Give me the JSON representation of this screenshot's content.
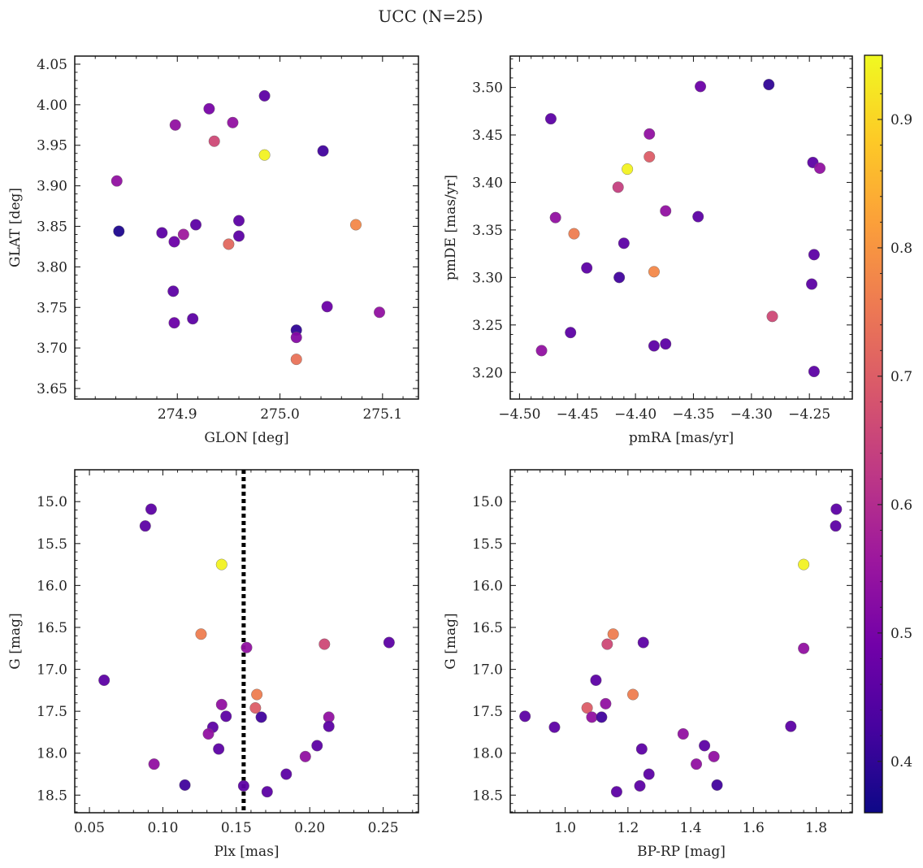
{
  "figure": {
    "title": "UCC (N=25)",
    "colormap": [
      "#0d0887",
      "#46039f",
      "#7201a8",
      "#9c179e",
      "#bd3786",
      "#d8576b",
      "#ed7953",
      "#fb9f3a",
      "#fdca26",
      "#f0f921"
    ],
    "colorbar": {
      "range": [
        0.36,
        0.95
      ],
      "ticks": [
        0.4,
        0.5,
        0.6,
        0.7,
        0.8,
        0.9
      ]
    }
  },
  "chart_data": [
    {
      "id": "p1",
      "type": "scatter",
      "xlabel": "GLON [deg]",
      "ylabel": "GLAT [deg]",
      "xlim": [
        274.8,
        275.135
      ],
      "ylim": [
        3.637,
        4.06
      ],
      "y_inverted": false,
      "xticks": [
        274.9,
        275.0,
        275.1
      ],
      "xtick_labels": [
        "274.9",
        "275.0",
        "275.1"
      ],
      "yticks": [
        3.65,
        3.7,
        3.75,
        3.8,
        3.85,
        3.9,
        3.95,
        4.0,
        4.05
      ],
      "ytick_labels": [
        "3.65",
        "3.70",
        "3.75",
        "3.80",
        "3.85",
        "3.90",
        "3.95",
        "4.00",
        "4.05"
      ],
      "points": [
        {
          "x": 274.843,
          "y": 3.844,
          "c": 0.38
        },
        {
          "x": 274.841,
          "y": 3.906,
          "c": 0.54
        },
        {
          "x": 274.885,
          "y": 3.842,
          "c": 0.46
        },
        {
          "x": 274.897,
          "y": 3.831,
          "c": 0.48
        },
        {
          "x": 274.906,
          "y": 3.84,
          "c": 0.56
        },
        {
          "x": 274.898,
          "y": 3.975,
          "c": 0.54
        },
        {
          "x": 274.931,
          "y": 3.995,
          "c": 0.5
        },
        {
          "x": 274.936,
          "y": 3.955,
          "c": 0.66
        },
        {
          "x": 274.954,
          "y": 3.978,
          "c": 0.54
        },
        {
          "x": 274.918,
          "y": 3.852,
          "c": 0.46
        },
        {
          "x": 274.96,
          "y": 3.857,
          "c": 0.46
        },
        {
          "x": 274.96,
          "y": 3.838,
          "c": 0.46
        },
        {
          "x": 274.95,
          "y": 3.828,
          "c": 0.72
        },
        {
          "x": 274.896,
          "y": 3.77,
          "c": 0.46
        },
        {
          "x": 274.897,
          "y": 3.731,
          "c": 0.48
        },
        {
          "x": 274.915,
          "y": 3.736,
          "c": 0.46
        },
        {
          "x": 274.985,
          "y": 4.011,
          "c": 0.46
        },
        {
          "x": 274.985,
          "y": 3.938,
          "c": 0.94
        },
        {
          "x": 275.042,
          "y": 3.943,
          "c": 0.42
        },
        {
          "x": 275.074,
          "y": 3.852,
          "c": 0.78
        },
        {
          "x": 275.046,
          "y": 3.751,
          "c": 0.48
        },
        {
          "x": 275.097,
          "y": 3.744,
          "c": 0.54
        },
        {
          "x": 275.016,
          "y": 3.722,
          "c": 0.4
        },
        {
          "x": 275.016,
          "y": 3.713,
          "c": 0.52
        },
        {
          "x": 275.016,
          "y": 3.686,
          "c": 0.74
        }
      ]
    },
    {
      "id": "p2",
      "type": "scatter",
      "xlabel": "pmRA [mas/yr]",
      "ylabel": "pmDE [mas/yr]",
      "xlim": [
        -4.508,
        -4.213
      ],
      "ylim": [
        3.172,
        3.533
      ],
      "y_inverted": false,
      "xticks": [
        -4.5,
        -4.45,
        -4.4,
        -4.35,
        -4.3,
        -4.25
      ],
      "xtick_labels": [
        "−4.50",
        "−4.45",
        "−4.40",
        "−4.35",
        "−4.30",
        "−4.25"
      ],
      "yticks": [
        3.2,
        3.25,
        3.3,
        3.35,
        3.4,
        3.45,
        3.5
      ],
      "ytick_labels": [
        "3.20",
        "3.25",
        "3.30",
        "3.35",
        "3.40",
        "3.45",
        "3.50"
      ],
      "points": [
        {
          "x": -4.473,
          "y": 3.467,
          "c": 0.46
        },
        {
          "x": -4.469,
          "y": 3.363,
          "c": 0.54
        },
        {
          "x": -4.453,
          "y": 3.346,
          "c": 0.76
        },
        {
          "x": -4.442,
          "y": 3.31,
          "c": 0.46
        },
        {
          "x": -4.414,
          "y": 3.3,
          "c": 0.42
        },
        {
          "x": -4.415,
          "y": 3.395,
          "c": 0.64
        },
        {
          "x": -4.407,
          "y": 3.414,
          "c": 0.94
        },
        {
          "x": -4.41,
          "y": 3.336,
          "c": 0.46
        },
        {
          "x": -4.388,
          "y": 3.451,
          "c": 0.54
        },
        {
          "x": -4.388,
          "y": 3.427,
          "c": 0.7
        },
        {
          "x": -4.384,
          "y": 3.306,
          "c": 0.78
        },
        {
          "x": -4.374,
          "y": 3.37,
          "c": 0.54
        },
        {
          "x": -4.346,
          "y": 3.364,
          "c": 0.46
        },
        {
          "x": -4.344,
          "y": 3.501,
          "c": 0.48
        },
        {
          "x": -4.285,
          "y": 3.503,
          "c": 0.4
        },
        {
          "x": -4.282,
          "y": 3.259,
          "c": 0.66
        },
        {
          "x": -4.456,
          "y": 3.242,
          "c": 0.46
        },
        {
          "x": -4.481,
          "y": 3.223,
          "c": 0.54
        },
        {
          "x": -4.384,
          "y": 3.228,
          "c": 0.46
        },
        {
          "x": -4.374,
          "y": 3.23,
          "c": 0.46
        },
        {
          "x": -4.247,
          "y": 3.421,
          "c": 0.46
        },
        {
          "x": -4.241,
          "y": 3.415,
          "c": 0.54
        },
        {
          "x": -4.246,
          "y": 3.324,
          "c": 0.46
        },
        {
          "x": -4.248,
          "y": 3.293,
          "c": 0.46
        },
        {
          "x": -4.246,
          "y": 3.201,
          "c": 0.46
        }
      ]
    },
    {
      "id": "p3",
      "type": "scatter",
      "xlabel": "Plx [mas]",
      "ylabel": "G [mag]",
      "xlim": [
        0.04,
        0.274
      ],
      "ylim": [
        18.71,
        14.62
      ],
      "y_inverted": true,
      "xticks": [
        0.05,
        0.1,
        0.15,
        0.2,
        0.25
      ],
      "xtick_labels": [
        "0.05",
        "0.10",
        "0.15",
        "0.20",
        "0.25"
      ],
      "yticks": [
        15.0,
        15.5,
        16.0,
        16.5,
        17.0,
        17.5,
        18.0,
        18.5
      ],
      "ytick_labels": [
        "15.0",
        "15.5",
        "16.0",
        "16.5",
        "17.0",
        "17.5",
        "18.0",
        "18.5"
      ],
      "vline": {
        "x": 0.155,
        "style": "dotted"
      },
      "points": [
        {
          "x": 0.092,
          "y": 15.09,
          "c": 0.46
        },
        {
          "x": 0.088,
          "y": 15.29,
          "c": 0.46
        },
        {
          "x": 0.14,
          "y": 15.75,
          "c": 0.94
        },
        {
          "x": 0.126,
          "y": 16.58,
          "c": 0.76
        },
        {
          "x": 0.157,
          "y": 16.74,
          "c": 0.54
        },
        {
          "x": 0.21,
          "y": 16.7,
          "c": 0.66
        },
        {
          "x": 0.254,
          "y": 16.68,
          "c": 0.46
        },
        {
          "x": 0.06,
          "y": 17.13,
          "c": 0.46
        },
        {
          "x": 0.164,
          "y": 17.3,
          "c": 0.76
        },
        {
          "x": 0.163,
          "y": 17.46,
          "c": 0.7
        },
        {
          "x": 0.14,
          "y": 17.42,
          "c": 0.54
        },
        {
          "x": 0.143,
          "y": 17.56,
          "c": 0.46
        },
        {
          "x": 0.167,
          "y": 17.57,
          "c": 0.42
        },
        {
          "x": 0.134,
          "y": 17.69,
          "c": 0.46
        },
        {
          "x": 0.131,
          "y": 17.77,
          "c": 0.54
        },
        {
          "x": 0.138,
          "y": 17.95,
          "c": 0.46
        },
        {
          "x": 0.213,
          "y": 17.57,
          "c": 0.54
        },
        {
          "x": 0.213,
          "y": 17.68,
          "c": 0.46
        },
        {
          "x": 0.205,
          "y": 17.91,
          "c": 0.46
        },
        {
          "x": 0.197,
          "y": 18.04,
          "c": 0.54
        },
        {
          "x": 0.094,
          "y": 18.13,
          "c": 0.54
        },
        {
          "x": 0.184,
          "y": 18.25,
          "c": 0.46
        },
        {
          "x": 0.115,
          "y": 18.38,
          "c": 0.42
        },
        {
          "x": 0.155,
          "y": 18.39,
          "c": 0.46
        },
        {
          "x": 0.171,
          "y": 18.46,
          "c": 0.46
        }
      ]
    },
    {
      "id": "p4",
      "type": "scatter",
      "xlabel": "BP-RP [mag]",
      "ylabel": "G [mag]",
      "xlim": [
        0.825,
        1.915
      ],
      "ylim": [
        18.71,
        14.62
      ],
      "y_inverted": true,
      "xticks": [
        1.0,
        1.2,
        1.4,
        1.6,
        1.8
      ],
      "xtick_labels": [
        "1.0",
        "1.2",
        "1.4",
        "1.6",
        "1.8"
      ],
      "yticks": [
        15.0,
        15.5,
        16.0,
        16.5,
        17.0,
        17.5,
        18.0,
        18.5
      ],
      "ytick_labels": [
        "15.0",
        "15.5",
        "16.0",
        "16.5",
        "17.0",
        "17.5",
        "18.0",
        "18.5"
      ],
      "points": [
        {
          "x": 1.864,
          "y": 15.09,
          "c": 0.46
        },
        {
          "x": 1.862,
          "y": 15.29,
          "c": 0.46
        },
        {
          "x": 1.76,
          "y": 15.75,
          "c": 0.94
        },
        {
          "x": 1.76,
          "y": 16.75,
          "c": 0.54
        },
        {
          "x": 1.153,
          "y": 16.58,
          "c": 0.76
        },
        {
          "x": 1.134,
          "y": 16.7,
          "c": 0.66
        },
        {
          "x": 1.249,
          "y": 16.68,
          "c": 0.46
        },
        {
          "x": 1.098,
          "y": 17.13,
          "c": 0.46
        },
        {
          "x": 1.216,
          "y": 17.3,
          "c": 0.76
        },
        {
          "x": 1.129,
          "y": 17.41,
          "c": 0.54
        },
        {
          "x": 1.07,
          "y": 17.46,
          "c": 0.7
        },
        {
          "x": 1.085,
          "y": 17.57,
          "c": 0.54
        },
        {
          "x": 1.116,
          "y": 17.57,
          "c": 0.42
        },
        {
          "x": 0.872,
          "y": 17.56,
          "c": 0.46
        },
        {
          "x": 0.966,
          "y": 17.69,
          "c": 0.46
        },
        {
          "x": 1.719,
          "y": 17.68,
          "c": 0.46
        },
        {
          "x": 1.376,
          "y": 17.77,
          "c": 0.54
        },
        {
          "x": 1.244,
          "y": 17.95,
          "c": 0.46
        },
        {
          "x": 1.444,
          "y": 17.91,
          "c": 0.46
        },
        {
          "x": 1.474,
          "y": 18.04,
          "c": 0.54
        },
        {
          "x": 1.418,
          "y": 18.13,
          "c": 0.54
        },
        {
          "x": 1.267,
          "y": 18.25,
          "c": 0.46
        },
        {
          "x": 1.484,
          "y": 18.38,
          "c": 0.42
        },
        {
          "x": 1.238,
          "y": 18.39,
          "c": 0.46
        },
        {
          "x": 1.164,
          "y": 18.46,
          "c": 0.46
        }
      ]
    }
  ]
}
